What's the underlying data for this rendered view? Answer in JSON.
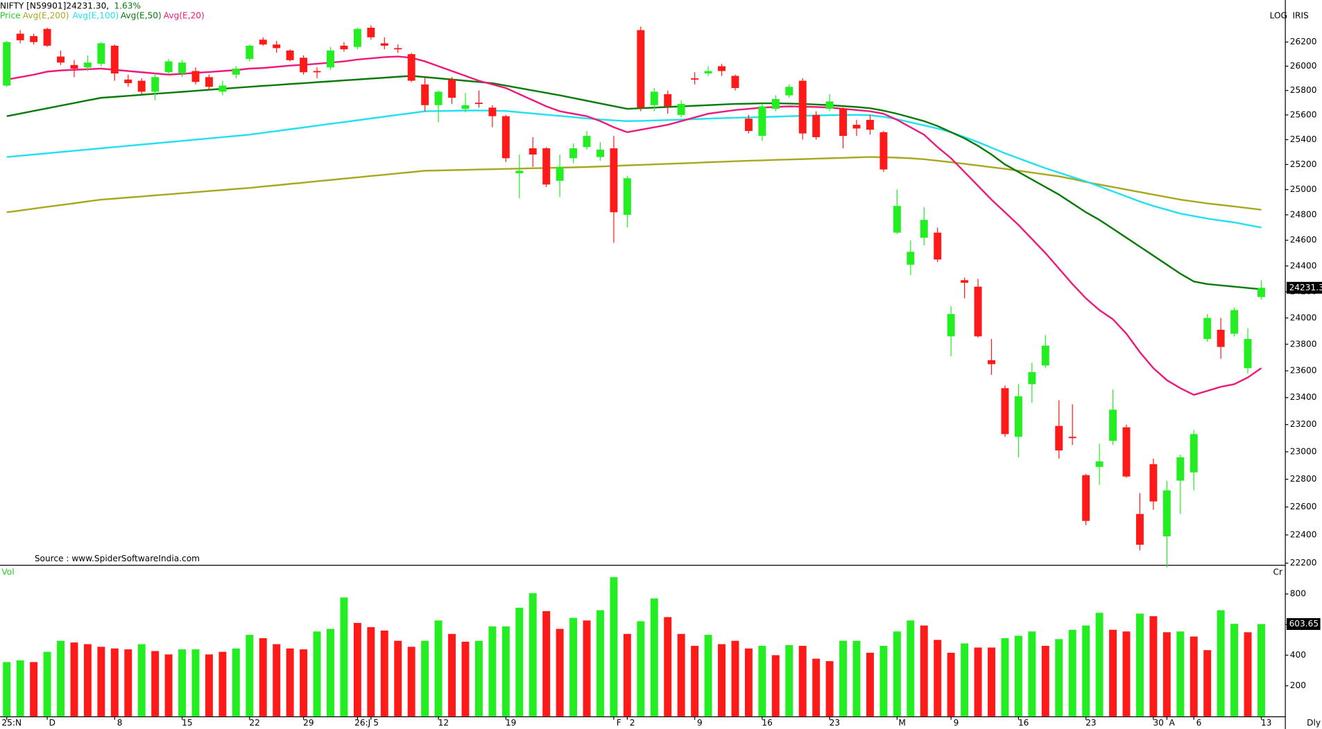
{
  "chart_data": [
    {
      "type": "candlestick",
      "title": "NIFTY [N59901]",
      "last_text": "24231.30,",
      "change_text": "1.63%",
      "price_label": "Price",
      "scale_label": "LOG",
      "theme_label": "IRIS",
      "period_label": "Dly",
      "source": "Source : www.SpiderSoftwareIndia.com",
      "log_scale": true,
      "up_color": "#22ee22",
      "down_color": "#ff1a1a",
      "categories": [
        "25:N",
        null,
        null,
        "D",
        null,
        null,
        null,
        null,
        "8",
        null,
        null,
        null,
        null,
        "15",
        null,
        null,
        null,
        null,
        "22",
        null,
        null,
        null,
        "29",
        null,
        null,
        null,
        "26:J",
        "5",
        null,
        null,
        null,
        null,
        "12",
        null,
        null,
        null,
        null,
        "19",
        null,
        null,
        null,
        null,
        null,
        null,
        null,
        "F",
        "2",
        null,
        null,
        null,
        null,
        "9",
        null,
        null,
        null,
        null,
        "16",
        null,
        null,
        null,
        null,
        "23",
        null,
        null,
        null,
        null,
        "M",
        null,
        null,
        null,
        "9",
        null,
        null,
        null,
        null,
        "16",
        null,
        null,
        null,
        null,
        "23",
        null,
        null,
        null,
        null,
        "30",
        "A",
        null,
        "6",
        null,
        null,
        null,
        null,
        "13"
      ],
      "open": [
        25840,
        26270,
        26250,
        26310,
        26080,
        26010,
        25990,
        26020,
        26170,
        25890,
        25880,
        25790,
        25950,
        25940,
        25960,
        25910,
        25790,
        25930,
        26060,
        26220,
        26180,
        26130,
        26070,
        25960,
        25990,
        26170,
        26160,
        26320,
        26190,
        26150,
        26100,
        25850,
        25680,
        25890,
        25650,
        25700,
        25660,
        25590,
        25130,
        25330,
        25330,
        25070,
        25250,
        25340,
        25260,
        25330,
        24800,
        26300,
        25680,
        25770,
        25600,
        25900,
        25940,
        26000,
        25920,
        25570,
        25430,
        25650,
        25760,
        25880,
        25600,
        25650,
        25650,
        25520,
        25560,
        25460,
        24660,
        24410,
        24620,
        24660,
        23860,
        24290,
        24240,
        23680,
        23470,
        23110,
        23500,
        23640,
        23190,
        23110,
        22830,
        22890,
        23080,
        23180,
        22550,
        22910,
        22390,
        22790,
        22850,
        23840,
        23910,
        23880,
        23620,
        24160
      ],
      "high": [
        26210,
        26300,
        26270,
        26320,
        26130,
        26050,
        26090,
        26200,
        26180,
        25930,
        25900,
        25940,
        26060,
        26050,
        25990,
        25930,
        25880,
        26000,
        26180,
        26240,
        26210,
        26140,
        26090,
        25990,
        26160,
        26200,
        26320,
        26340,
        26240,
        26180,
        26110,
        25910,
        25800,
        25910,
        25780,
        25800,
        25680,
        25600,
        25280,
        25420,
        25340,
        25280,
        25370,
        25470,
        25380,
        25430,
        25110,
        26330,
        25820,
        25800,
        25720,
        25950,
        26000,
        26020,
        25930,
        25600,
        25690,
        25760,
        25850,
        25900,
        25630,
        25770,
        25660,
        25560,
        25600,
        25470,
        25000,
        24600,
        24860,
        24700,
        24090,
        24310,
        24300,
        23840,
        23490,
        23500,
        23660,
        23870,
        23380,
        23350,
        22840,
        23060,
        23460,
        23200,
        22700,
        22950,
        22790,
        22980,
        23160,
        24030,
        24000,
        24080,
        23920,
        24290
      ],
      "low": [
        25830,
        26190,
        26180,
        26160,
        26010,
        25910,
        25960,
        26000,
        25880,
        25830,
        25770,
        25720,
        25930,
        25910,
        25850,
        25800,
        25760,
        25900,
        26040,
        26170,
        26110,
        26040,
        25930,
        25900,
        25970,
        26120,
        26140,
        26220,
        26140,
        26110,
        25870,
        25630,
        25540,
        25690,
        25620,
        25660,
        25500,
        25220,
        24930,
        25180,
        25020,
        24940,
        25210,
        25320,
        25230,
        24580,
        24700,
        25630,
        25630,
        25610,
        25580,
        25850,
        25920,
        25920,
        25800,
        25450,
        25390,
        25630,
        25740,
        25400,
        25400,
        25630,
        25330,
        25430,
        25440,
        25140,
        24650,
        24330,
        24560,
        24430,
        23710,
        24150,
        23850,
        23570,
        23110,
        22960,
        23360,
        23620,
        22950,
        23050,
        22470,
        22760,
        23050,
        22810,
        22290,
        22580,
        22170,
        22550,
        22720,
        23820,
        23690,
        23860,
        23580,
        24140
      ],
      "close": [
        26200,
        26215,
        26200,
        26170,
        26030,
        25980,
        26030,
        26190,
        25940,
        25860,
        25790,
        25910,
        26040,
        26030,
        25870,
        25830,
        25840,
        25980,
        26170,
        26180,
        26150,
        26050,
        25950,
        25950,
        26130,
        26140,
        26310,
        26240,
        26170,
        26140,
        25880,
        25680,
        25790,
        25740,
        25680,
        25690,
        25590,
        25250,
        25150,
        25280,
        25040,
        25180,
        25330,
        25430,
        25320,
        24820,
        25090,
        25660,
        25790,
        25670,
        25690,
        25890,
        25960,
        25960,
        25820,
        25470,
        25670,
        25730,
        25830,
        25450,
        25420,
        25710,
        25430,
        25490,
        25480,
        25160,
        24870,
        24510,
        24760,
        24450,
        24030,
        24270,
        23860,
        23650,
        23130,
        23410,
        23590,
        23790,
        23010,
        23100,
        22500,
        22930,
        23310,
        22820,
        22330,
        22640,
        22720,
        22960,
        23130,
        24000,
        23780,
        24060,
        23840,
        24231.3
      ],
      "series": [
        {
          "name": "Avg(E,200)",
          "color": "#a8a820",
          "values": [
            24820,
            24834,
            24849,
            24863,
            24877,
            24891,
            24906,
            24920,
            24928,
            24937,
            24945,
            24954,
            24962,
            24971,
            24979,
            24988,
            24996,
            25005,
            25013,
            25024,
            25034,
            25045,
            25055,
            25066,
            25076,
            25087,
            25097,
            25108,
            25118,
            25129,
            25139,
            25150,
            25152,
            25155,
            25157,
            25160,
            25162,
            25165,
            25167,
            25170,
            25172,
            25175,
            25177,
            25180,
            25184,
            25188,
            25193,
            25197,
            25201,
            25205,
            25209,
            25213,
            25218,
            25222,
            25226,
            25230,
            25233,
            25237,
            25240,
            25243,
            25247,
            25250,
            25253,
            25257,
            25260,
            25258,
            25255,
            25250,
            25242,
            25230,
            25218,
            25205,
            25192,
            25178,
            25165,
            25150,
            25135,
            25120,
            25105,
            25085,
            25060,
            25040,
            25020,
            25000,
            24980,
            24960,
            24940,
            24920,
            24905,
            24890,
            24878,
            24866,
            24853,
            24840
          ]
        },
        {
          "name": "Avg(E,100)",
          "color": "#22e0f0",
          "values": [
            25260,
            25270,
            25280,
            25290,
            25300,
            25310,
            25320,
            25330,
            25340,
            25350,
            25360,
            25370,
            25380,
            25390,
            25400,
            25410,
            25420,
            25430,
            25440,
            25455,
            25469,
            25484,
            25498,
            25513,
            25528,
            25542,
            25557,
            25572,
            25586,
            25601,
            25615,
            25630,
            25632,
            25634,
            25636,
            25636,
            25635,
            25632,
            25622,
            25612,
            25602,
            25592,
            25582,
            25572,
            25563,
            25556,
            25550,
            25552,
            25555,
            25558,
            25562,
            25566,
            25570,
            25574,
            25577,
            25580,
            25583,
            25586,
            25590,
            25593,
            25596,
            25598,
            25600,
            25600,
            25598,
            25585,
            25565,
            25540,
            25515,
            25490,
            25460,
            25420,
            25380,
            25335,
            25290,
            25250,
            25210,
            25170,
            25135,
            25100,
            25065,
            25025,
            24985,
            24945,
            24905,
            24870,
            24840,
            24810,
            24790,
            24770,
            24755,
            24740,
            24720,
            24700
          ]
        },
        {
          "name": "Avg(E,50)",
          "color": "#0a7a0a",
          "values": [
            25590,
            25611,
            25633,
            25654,
            25676,
            25697,
            25719,
            25740,
            25748,
            25756,
            25765,
            25773,
            25781,
            25789,
            25797,
            25806,
            25814,
            25822,
            25830,
            25838,
            25845,
            25853,
            25860,
            25868,
            25875,
            25883,
            25890,
            25898,
            25905,
            25913,
            25920,
            25910,
            25900,
            25890,
            25880,
            25870,
            25860,
            25840,
            25820,
            25800,
            25780,
            25760,
            25738,
            25716,
            25694,
            25672,
            25650,
            25655,
            25660,
            25665,
            25670,
            25675,
            25680,
            25685,
            25690,
            25692,
            25695,
            25695,
            25693,
            25690,
            25685,
            25680,
            25672,
            25665,
            25655,
            25635,
            25610,
            25580,
            25550,
            25510,
            25460,
            25410,
            25350,
            25280,
            25200,
            25140,
            25080,
            25020,
            24960,
            24890,
            24820,
            24760,
            24690,
            24620,
            24550,
            24480,
            24410,
            24340,
            24280,
            24260,
            24250,
            24240,
            24230,
            24220
          ]
        },
        {
          "name": "Avg(E,20)",
          "color": "#ee1a7a",
          "values": [
            25890,
            25910,
            25930,
            25955,
            25965,
            25970,
            25975,
            25980,
            25970,
            25960,
            25950,
            25940,
            25930,
            25937,
            25945,
            25952,
            25960,
            25968,
            25980,
            25985,
            25995,
            26005,
            26012,
            26020,
            26030,
            26040,
            26055,
            26065,
            26075,
            26080,
            26070,
            26040,
            26000,
            25960,
            25920,
            25880,
            25850,
            25820,
            25770,
            25720,
            25670,
            25630,
            25610,
            25590,
            25550,
            25500,
            25460,
            25480,
            25500,
            25520,
            25550,
            25580,
            25610,
            25625,
            25640,
            25650,
            25660,
            25665,
            25670,
            25668,
            25665,
            25660,
            25650,
            25640,
            25630,
            25610,
            25560,
            25500,
            25440,
            25340,
            25250,
            25140,
            25030,
            24920,
            24820,
            24720,
            24610,
            24500,
            24380,
            24260,
            24150,
            24060,
            23990,
            23880,
            23740,
            23620,
            23530,
            23470,
            23420,
            23450,
            23480,
            23500,
            23550,
            23620
          ]
        }
      ],
      "ylim": [
        22188,
        26553
      ],
      "yticks": [
        22200,
        22400,
        22600,
        22800,
        23000,
        23200,
        23400,
        23600,
        23800,
        24000,
        24200,
        24400,
        24600,
        24800,
        25000,
        25200,
        25400,
        25600,
        25800,
        26000,
        26200
      ]
    },
    {
      "type": "bar",
      "label": "Vol",
      "unit_label": "Cr",
      "values": [
        355,
        366,
        355,
        422,
        494,
        483,
        472,
        455,
        444,
        438,
        472,
        427,
        405,
        438,
        438,
        405,
        422,
        444,
        533,
        511,
        472,
        444,
        438,
        555,
        572,
        777,
        611,
        583,
        561,
        494,
        455,
        494,
        627,
        539,
        488,
        494,
        588,
        588,
        710,
        805,
        688,
        572,
        644,
        627,
        694,
        910,
        539,
        622,
        771,
        649,
        539,
        461,
        533,
        472,
        494,
        444,
        461,
        400,
        466,
        461,
        377,
        361,
        494,
        494,
        416,
        461,
        555,
        627,
        594,
        500,
        416,
        477,
        450,
        450,
        511,
        527,
        555,
        461,
        505,
        566,
        594,
        677,
        566,
        555,
        672,
        655,
        550,
        555,
        522,
        433,
        694,
        605,
        550,
        603.65
      ],
      "colors": [
        "#22ee22",
        "#22ee22",
        "#ff1a1a",
        "#22ee22",
        "#22ee22",
        "#ff1a1a",
        "#ff1a1a",
        "#ff1a1a",
        "#ff1a1a",
        "#ff1a1a",
        "#22ee22",
        "#ff1a1a",
        "#ff1a1a",
        "#22ee22",
        "#22ee22",
        "#ff1a1a",
        "#ff1a1a",
        "#22ee22",
        "#22ee22",
        "#ff1a1a",
        "#ff1a1a",
        "#ff1a1a",
        "#ff1a1a",
        "#22ee22",
        "#22ee22",
        "#22ee22",
        "#ff1a1a",
        "#ff1a1a",
        "#ff1a1a",
        "#ff1a1a",
        "#ff1a1a",
        "#22ee22",
        "#22ee22",
        "#ff1a1a",
        "#ff1a1a",
        "#22ee22",
        "#22ee22",
        "#22ee22",
        "#22ee22",
        "#22ee22",
        "#ff1a1a",
        "#ff1a1a",
        "#22ee22",
        "#ff1a1a",
        "#22ee22",
        "#22ee22",
        "#ff1a1a",
        "#22ee22",
        "#22ee22",
        "#ff1a1a",
        "#ff1a1a",
        "#ff1a1a",
        "#22ee22",
        "#ff1a1a",
        "#ff1a1a",
        "#ff1a1a",
        "#22ee22",
        "#ff1a1a",
        "#22ee22",
        "#ff1a1a",
        "#ff1a1a",
        "#ff1a1a",
        "#22ee22",
        "#22ee22",
        "#ff1a1a",
        "#22ee22",
        "#22ee22",
        "#22ee22",
        "#ff1a1a",
        "#ff1a1a",
        "#ff1a1a",
        "#22ee22",
        "#ff1a1a",
        "#ff1a1a",
        "#22ee22",
        "#22ee22",
        "#22ee22",
        "#ff1a1a",
        "#22ee22",
        "#22ee22",
        "#22ee22",
        "#22ee22",
        "#ff1a1a",
        "#ff1a1a",
        "#22ee22",
        "#ff1a1a",
        "#ff1a1a",
        "#22ee22",
        "#ff1a1a",
        "#ff1a1a",
        "#22ee22",
        "#22ee22",
        "#ff1a1a",
        "#22ee22"
      ],
      "ylim": [
        0,
        985
      ],
      "yticks": [
        200,
        400,
        600,
        800
      ]
    }
  ]
}
